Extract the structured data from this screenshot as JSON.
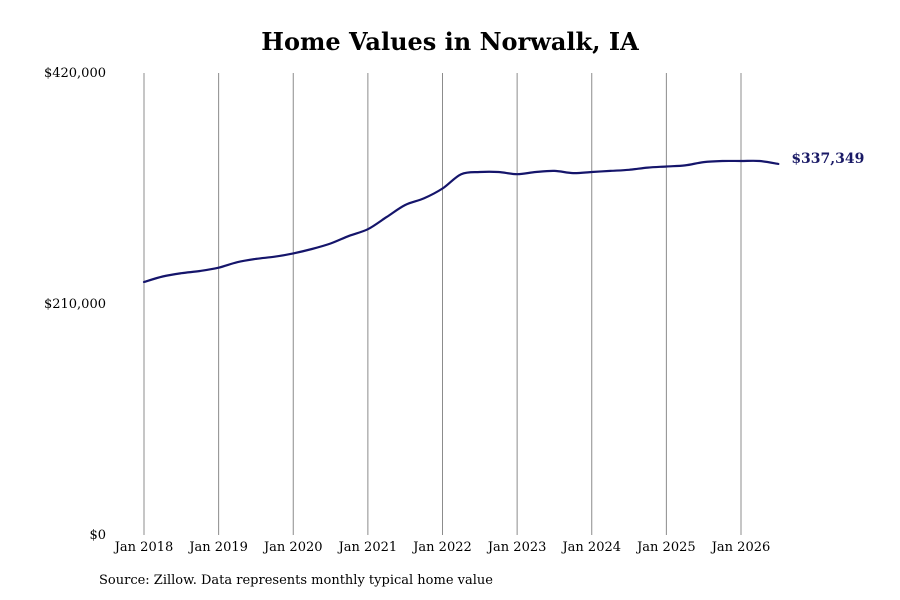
{
  "chart_data": {
    "type": "line",
    "title": "Home Values in Norwalk, IA",
    "source": "Source: Zillow. Data represents monthly typical home value",
    "ylim": [
      0,
      420000
    ],
    "yticks": [
      {
        "value": 0,
        "label": "$0"
      },
      {
        "value": 210000,
        "label": "$210,000"
      },
      {
        "value": 420000,
        "label": "$420,000"
      }
    ],
    "xlim": [
      "2018-01",
      "2026-07"
    ],
    "xticks": [
      {
        "value": "2018-01",
        "label": "Jan 2018"
      },
      {
        "value": "2019-01",
        "label": "Jan 2019"
      },
      {
        "value": "2020-01",
        "label": "Jan 2020"
      },
      {
        "value": "2021-01",
        "label": "Jan 2021"
      },
      {
        "value": "2022-01",
        "label": "Jan 2022"
      },
      {
        "value": "2023-01",
        "label": "Jan 2023"
      },
      {
        "value": "2024-01",
        "label": "Jan 2024"
      },
      {
        "value": "2025-01",
        "label": "Jan 2025"
      },
      {
        "value": "2026-01",
        "label": "Jan 2026"
      }
    ],
    "grid": "vertical",
    "line_color": "#15156b",
    "end_label": "$337,349",
    "series": [
      {
        "x": [
          "2018-01",
          "2018-04",
          "2018-07",
          "2018-10",
          "2019-01",
          "2019-04",
          "2019-07",
          "2019-10",
          "2020-01",
          "2020-04",
          "2020-07",
          "2020-10",
          "2021-01",
          "2021-04",
          "2021-07",
          "2021-10",
          "2022-01",
          "2022-04",
          "2022-07",
          "2022-10",
          "2023-01",
          "2023-04",
          "2023-07",
          "2023-10",
          "2024-01",
          "2024-04",
          "2024-07",
          "2024-10",
          "2025-01",
          "2025-04",
          "2025-07",
          "2025-10",
          "2026-01",
          "2026-04",
          "2026-07"
        ],
        "y": [
          230000,
          235000,
          238000,
          240000,
          243000,
          248000,
          251000,
          253000,
          256000,
          260000,
          265000,
          272000,
          278000,
          289000,
          300000,
          306000,
          315000,
          328000,
          330000,
          330000,
          328000,
          330000,
          331000,
          329000,
          330000,
          331000,
          332000,
          334000,
          335000,
          336000,
          339000,
          340000,
          340000,
          340000,
          337349
        ]
      }
    ]
  }
}
